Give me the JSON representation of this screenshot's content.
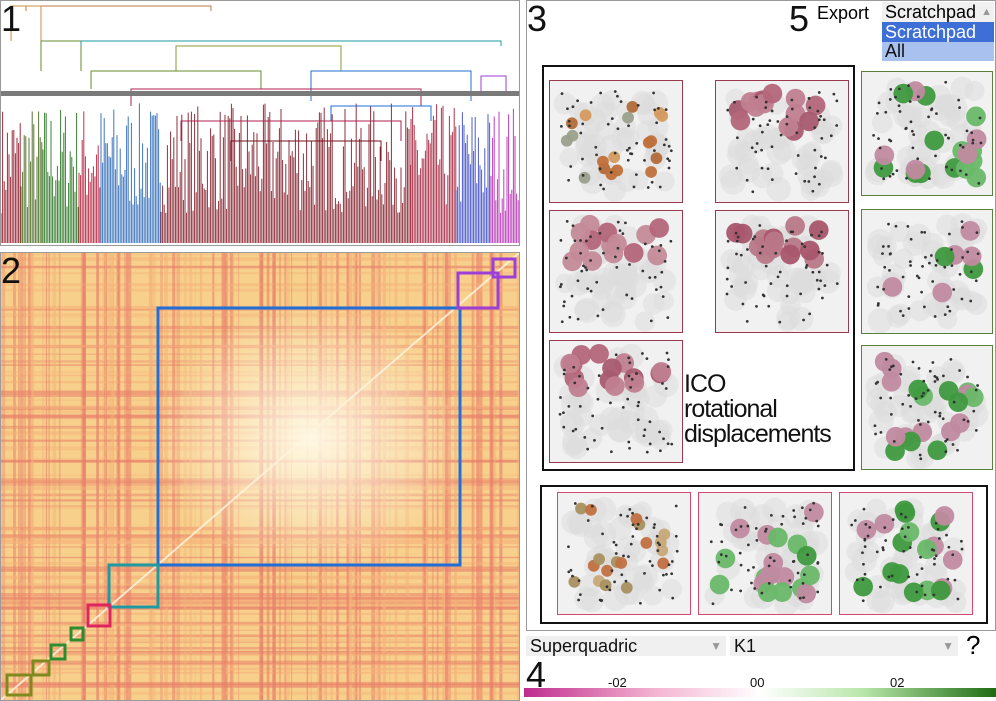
{
  "panels": {
    "dendrogram_label": "1",
    "matrix_label": "2",
    "gallery_label": "3",
    "colormap_label": "4",
    "export_label": "5"
  },
  "export": {
    "label": "Export",
    "selected": "Scratchpad",
    "options": [
      "Scratchpad",
      "All"
    ]
  },
  "annotation": {
    "line1": "ICO",
    "line2": "rotational",
    "line3": "displacements"
  },
  "selectors": {
    "shape": "Superquadric",
    "field": "K1",
    "help": "?"
  },
  "colorbar": {
    "ticks": [
      "-02",
      "00",
      "02"
    ],
    "colors": {
      "neg": "#c02c8e",
      "mid": "#ffffff",
      "pos": "#1e6b12"
    }
  },
  "palette": {
    "green": "#2e8b2e",
    "blue": "#1f6fd6",
    "teal": "#1f9aa0",
    "crimson": "#e0245e",
    "purple": "#9b3fd6",
    "olive": "#7e8a1e",
    "maroon": "#7a1020"
  }
}
